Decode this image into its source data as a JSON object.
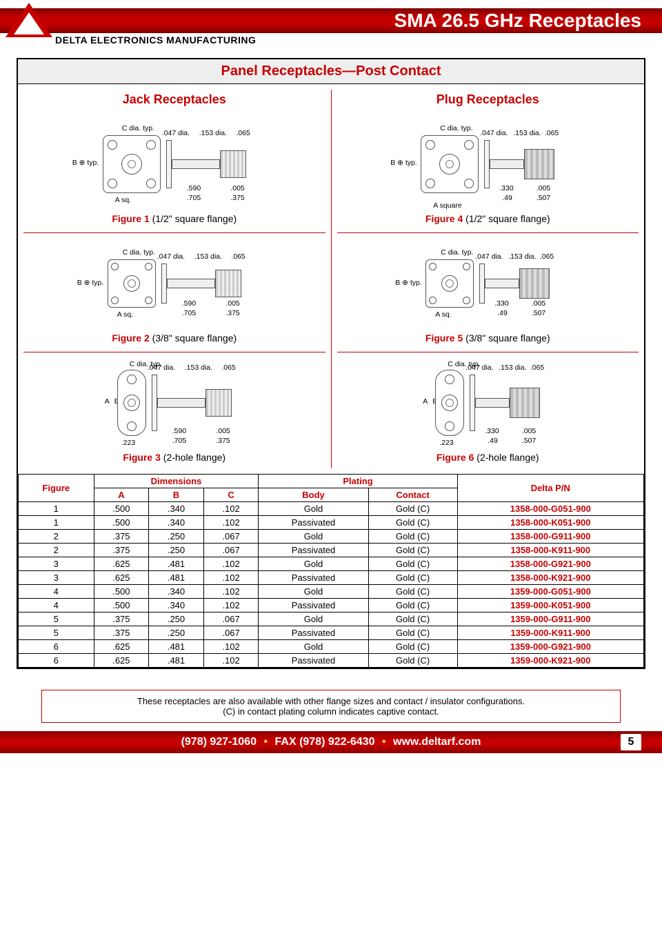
{
  "header": {
    "title": "SMA 26.5 GHz Receptacles",
    "company": "DELTA ELECTRONICS MANUFACTURING"
  },
  "section_title": "Panel Receptacles—Post Contact",
  "columns": {
    "left_title": "Jack Receptacles",
    "right_title": "Plug Receptacles"
  },
  "dims_jack": {
    "c_dia": "C dia. typ.",
    "d047": ".047 dia.",
    "d153": ".153 dia.",
    "d065": ".065",
    "b_typ": "B ⊕ typ.",
    "a_sq": "A sq.",
    "d590": ".590",
    "d705": ".705",
    "d005": ".005",
    "d375": ".375",
    "d223": ".223",
    "a_lbl": "A",
    "b_lbl": "B ⊕"
  },
  "dims_plug": {
    "c_dia": "C dia. typ.",
    "d047": ".047 dia.",
    "d153": ".153 dia.",
    "d065": ".065",
    "b_typ": "B ⊕ typ.",
    "a_square": "A square",
    "a_sq": "A sq.",
    "d330": ".330",
    "d49": ".49",
    "d005": ".005",
    "d507": ".507",
    "d223": ".223",
    "a_lbl": "A",
    "b_lbl": "B ⊕"
  },
  "figures": {
    "f1": {
      "name": "Figure 1",
      "desc": "(1/2\" square flange)"
    },
    "f2": {
      "name": "Figure 2",
      "desc": "(3/8\" square flange)"
    },
    "f3": {
      "name": "Figure 3",
      "desc": "(2-hole flange)"
    },
    "f4": {
      "name": "Figure 4",
      "desc": "(1/2\" square flange)"
    },
    "f5": {
      "name": "Figure 5",
      "desc": "(3/8\" square flange)"
    },
    "f6": {
      "name": "Figure 6",
      "desc": "(2-hole flange)"
    }
  },
  "table": {
    "headers": {
      "figure": "Figure",
      "dimensions": "Dimensions",
      "a": "A",
      "b": "B",
      "c": "C",
      "plating": "Plating",
      "body": "Body",
      "contact": "Contact",
      "pn": "Delta P/N"
    },
    "rows": [
      {
        "fig": "1",
        "a": ".500",
        "b": ".340",
        "c": ".102",
        "body": "Gold",
        "contact": "Gold (C)",
        "pn": "1358-000-G051-900"
      },
      {
        "fig": "1",
        "a": ".500",
        "b": ".340",
        "c": ".102",
        "body": "Passivated",
        "contact": "Gold (C)",
        "pn": "1358-000-K051-900"
      },
      {
        "fig": "2",
        "a": ".375",
        "b": ".250",
        "c": ".067",
        "body": "Gold",
        "contact": "Gold (C)",
        "pn": "1358-000-G911-900"
      },
      {
        "fig": "2",
        "a": ".375",
        "b": ".250",
        "c": ".067",
        "body": "Passivated",
        "contact": "Gold (C)",
        "pn": "1358-000-K911-900"
      },
      {
        "fig": "3",
        "a": ".625",
        "b": ".481",
        "c": ".102",
        "body": "Gold",
        "contact": "Gold (C)",
        "pn": "1358-000-G921-900"
      },
      {
        "fig": "3",
        "a": ".625",
        "b": ".481",
        "c": ".102",
        "body": "Passivated",
        "contact": "Gold (C)",
        "pn": "1358-000-K921-900"
      },
      {
        "fig": "4",
        "a": ".500",
        "b": ".340",
        "c": ".102",
        "body": "Gold",
        "contact": "Gold (C)",
        "pn": "1359-000-G051-900"
      },
      {
        "fig": "4",
        "a": ".500",
        "b": ".340",
        "c": ".102",
        "body": "Passivated",
        "contact": "Gold (C)",
        "pn": "1359-000-K051-900"
      },
      {
        "fig": "5",
        "a": ".375",
        "b": ".250",
        "c": ".067",
        "body": "Gold",
        "contact": "Gold (C)",
        "pn": "1359-000-G911-900"
      },
      {
        "fig": "5",
        "a": ".375",
        "b": ".250",
        "c": ".067",
        "body": "Passivated",
        "contact": "Gold (C)",
        "pn": "1359-000-K911-900"
      },
      {
        "fig": "6",
        "a": ".625",
        "b": ".481",
        "c": ".102",
        "body": "Gold",
        "contact": "Gold (C)",
        "pn": "1359-000-G921-900"
      },
      {
        "fig": "6",
        "a": ".625",
        "b": ".481",
        "c": ".102",
        "body": "Passivated",
        "contact": "Gold (C)",
        "pn": "1359-000-K921-900"
      }
    ]
  },
  "note": {
    "line1": "These receptacles are also available with other flange sizes and contact / insulator configurations.",
    "line2": "(C) in contact plating column indicates captive contact."
  },
  "footer": {
    "phone": "(978) 927-1060",
    "fax": "FAX (978) 922-6430",
    "web": "www.deltarf.com",
    "page": "5"
  }
}
